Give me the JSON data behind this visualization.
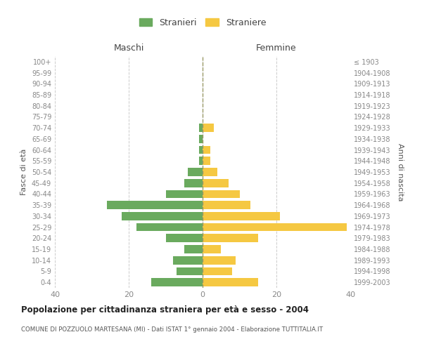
{
  "age_groups": [
    "0-4",
    "5-9",
    "10-14",
    "15-19",
    "20-24",
    "25-29",
    "30-34",
    "35-39",
    "40-44",
    "45-49",
    "50-54",
    "55-59",
    "60-64",
    "65-69",
    "70-74",
    "75-79",
    "80-84",
    "85-89",
    "90-94",
    "95-99",
    "100+"
  ],
  "birth_years": [
    "1999-2003",
    "1994-1998",
    "1989-1993",
    "1984-1988",
    "1979-1983",
    "1974-1978",
    "1969-1973",
    "1964-1968",
    "1959-1963",
    "1954-1958",
    "1949-1953",
    "1944-1948",
    "1939-1943",
    "1934-1938",
    "1929-1933",
    "1924-1928",
    "1919-1923",
    "1914-1918",
    "1909-1913",
    "1904-1908",
    "≤ 1903"
  ],
  "maschi": [
    14,
    7,
    8,
    5,
    10,
    18,
    22,
    26,
    10,
    5,
    4,
    1,
    1,
    1,
    1,
    0,
    0,
    0,
    0,
    0,
    0
  ],
  "femmine": [
    15,
    8,
    9,
    5,
    15,
    39,
    21,
    13,
    10,
    7,
    4,
    2,
    2,
    0,
    3,
    0,
    0,
    0,
    0,
    0,
    0
  ],
  "maschi_color": "#6aaa5e",
  "femmine_color": "#f5c842",
  "background_color": "#ffffff",
  "grid_color": "#cccccc",
  "title": "Popolazione per cittadinanza straniera per età e sesso - 2004",
  "subtitle": "COMUNE DI POZZUOLO MARTESANA (MI) - Dati ISTAT 1° gennaio 2004 - Elaborazione TUTTITALIA.IT",
  "ylabel_left": "Fasce di età",
  "ylabel_right": "Anni di nascita",
  "header_maschi": "Maschi",
  "header_femmine": "Femmine",
  "legend_maschi": "Stranieri",
  "legend_femmine": "Straniere",
  "xlim": 40,
  "tick_color": "#888888",
  "bar_height": 0.75
}
